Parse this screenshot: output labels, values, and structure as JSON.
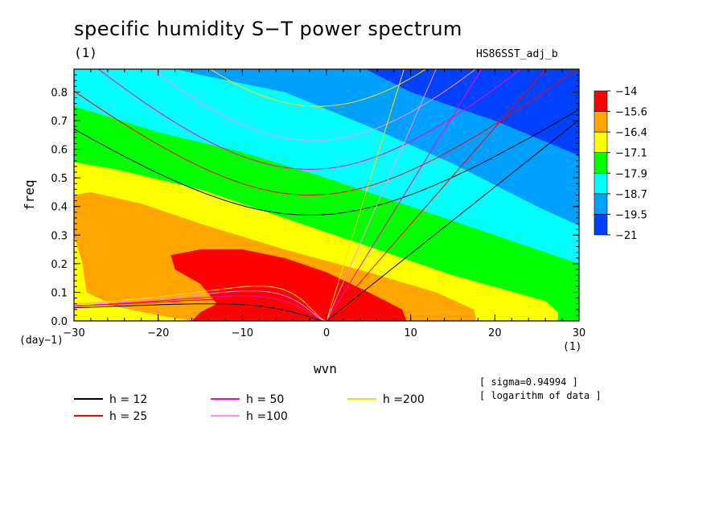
{
  "header": {
    "title": "specific humidity S−T power spectrum",
    "unit_top": "(1)",
    "run_name": "HS86SST_adj_b"
  },
  "axes": {
    "xlabel": "wvn",
    "ylabel": "freq",
    "x_unit": "(1)",
    "y_unit": "(day−1)"
  },
  "notes": {
    "sigma": "[ sigma=0.94994 ]",
    "log": "[ logarithm of data ]"
  },
  "chart_data": {
    "type": "heatmap",
    "title": "specific humidity S−T power spectrum",
    "xlabel": "wvn",
    "ylabel": "freq",
    "xlim": [
      -30,
      30
    ],
    "ylim": [
      0,
      0.88
    ],
    "x_ticks": [
      -30,
      -20,
      -10,
      0,
      10,
      20,
      30
    ],
    "x_tick_labels": [
      "−30",
      "−20",
      "−10",
      "0",
      "10",
      "20",
      "30"
    ],
    "y_ticks": [
      0,
      0.1,
      0.2,
      0.3,
      0.4,
      0.5,
      0.6,
      0.7,
      0.8
    ],
    "y_tick_labels": [
      "0.0",
      "0.1",
      "0.2",
      "0.3",
      "0.4",
      "0.5",
      "0.6",
      "0.7",
      "0.8"
    ],
    "colorbar": {
      "labels": [
        "−14",
        "−15.6",
        "−16.4",
        "−17.1",
        "−17.9",
        "−18.7",
        "−19.5",
        "−21"
      ],
      "colors": [
        "#ff0000",
        "#ffa500",
        "#ffff00",
        "#00ff00",
        "#00ffff",
        "#00a0ff",
        "#0040ff"
      ]
    },
    "dispersion_curves": [
      {
        "label": "h = 12",
        "h": 12,
        "color": "#000000"
      },
      {
        "label": "h = 25",
        "h": 25,
        "color": "#ff0000"
      },
      {
        "label": "h = 50",
        "h": 50,
        "color": "#ff00c8"
      },
      {
        "label": "h =100",
        "h": 100,
        "color": "#ff90e6"
      },
      {
        "label": "h =200",
        "h": 200,
        "color": "#ffe000"
      }
    ]
  }
}
